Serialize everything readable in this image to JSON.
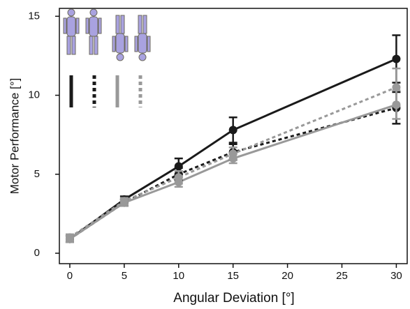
{
  "chart_data": {
    "type": "line",
    "xlabel": "Angular Deviation [°]",
    "ylabel": "Motor Performance [°]",
    "x": [
      0,
      5,
      10,
      15,
      30
    ],
    "xlim": [
      -0.96,
      31
    ],
    "xticks": [
      0,
      5,
      10,
      15,
      20,
      25,
      30
    ],
    "ylim": [
      -0.66,
      15.5
    ],
    "yticks": [
      0,
      5,
      10,
      15
    ],
    "series": [
      {
        "color": "#1a1a1a",
        "dash": "solid",
        "values": [
          0.9,
          3.4,
          5.5,
          7.8,
          12.3
        ],
        "errors": [
          0.2,
          0.2,
          0.5,
          0.8,
          1.5
        ]
      },
      {
        "color": "#1a1a1a",
        "dash": "dotted",
        "values": [
          0.9,
          3.2,
          5.0,
          6.4,
          9.2
        ],
        "errors": [
          0.2,
          0.2,
          0.4,
          0.5,
          1.0
        ]
      },
      {
        "color": "#999999",
        "dash": "solid",
        "values": [
          0.9,
          3.2,
          4.5,
          6.0,
          9.4
        ],
        "errors": [
          0.2,
          0.2,
          0.3,
          0.3,
          0.9
        ]
      },
      {
        "color": "#999999",
        "dash": "dotted",
        "values": [
          1.0,
          3.3,
          4.8,
          6.3,
          10.5
        ],
        "errors": [
          0.2,
          0.2,
          0.4,
          0.4,
          1.2
        ]
      }
    ]
  }
}
